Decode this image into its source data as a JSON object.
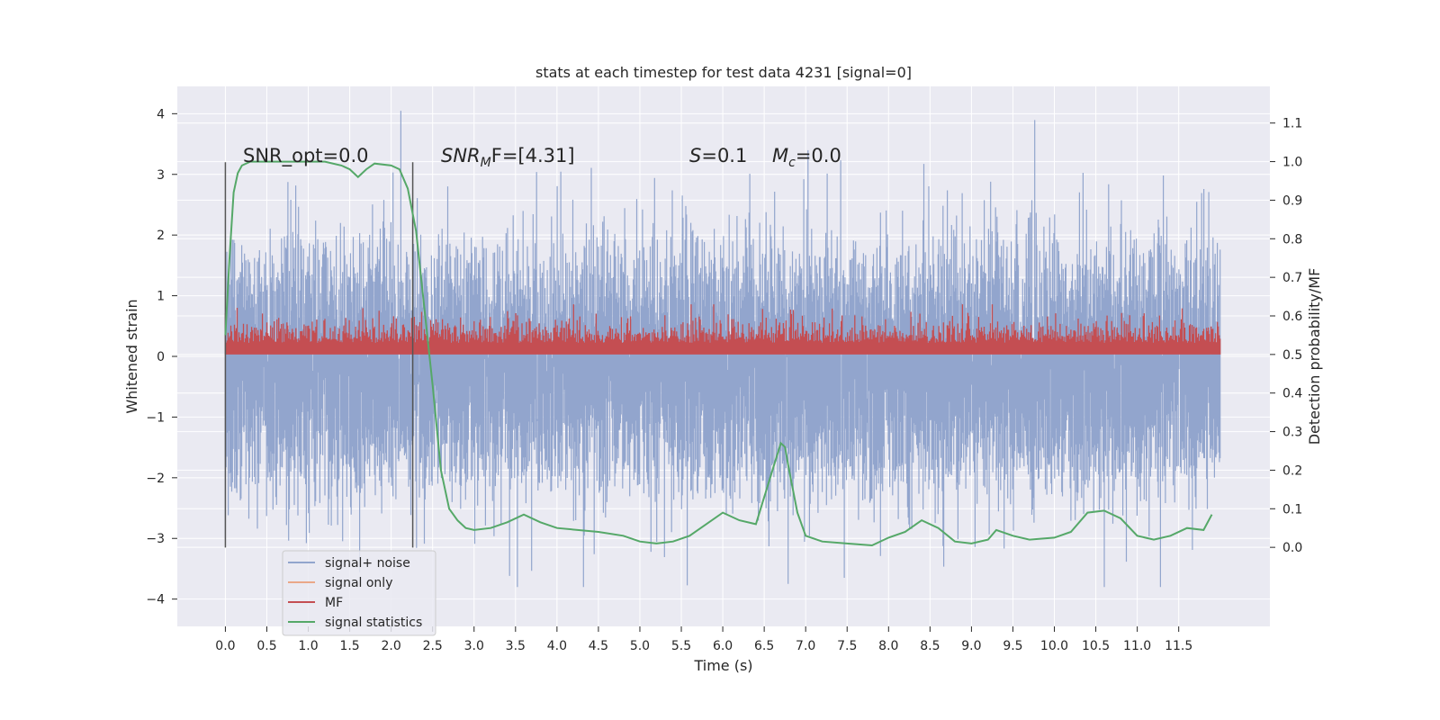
{
  "chart_data": {
    "type": "line",
    "title": "stats at each timestep for test data 4231 [signal=0]",
    "xlabel": "Time (s)",
    "ylabel": "Whitened strain",
    "ylabel_right": "Detection probability/MF",
    "xlim": [
      -0.58,
      12.6
    ],
    "ylim": [
      -4.45,
      4.45
    ],
    "ylim_right": [
      -0.205,
      1.195
    ],
    "x_ticks": [
      "0.0",
      "0.5",
      "1.0",
      "1.5",
      "2.0",
      "2.5",
      "3.0",
      "3.5",
      "4.0",
      "4.5",
      "5.0",
      "5.5",
      "6.0",
      "6.5",
      "7.0",
      "7.5",
      "8.0",
      "8.5",
      "9.0",
      "9.5",
      "10.0",
      "10.5",
      "11.0",
      "11.5"
    ],
    "y_ticks": [
      "4",
      "3",
      "2",
      "1",
      "0",
      "−1",
      "−2",
      "−3",
      "−4"
    ],
    "y_right_ticks": [
      "1.1",
      "1.0",
      "0.9",
      "0.8",
      "0.7",
      "0.6",
      "0.5",
      "0.4",
      "0.3",
      "0.2",
      "0.1",
      "0.0"
    ],
    "grid": true,
    "legend_position": "lower-left",
    "annotations": {
      "snr_opt": "SNR_opt=0.0",
      "snr_mf_var": "SNR",
      "snr_mf_sub": "M",
      "snr_mf_rest": "F=[4.31]",
      "s_var": "S",
      "s_rest": "=0.1",
      "mc_var": "M",
      "mc_sub": "c",
      "mc_rest": "=0.0"
    },
    "vlines_x": [
      0.0,
      2.26
    ],
    "series": [
      {
        "name": "signal+ noise",
        "color": "#92a5cd",
        "axis": "left",
        "kind": "noise",
        "x_range": [
          0.0,
          12.0
        ],
        "center": -0.3,
        "typical_range": [
          -2.0,
          2.3
        ],
        "extreme_range": [
          -3.8,
          4.1
        ]
      },
      {
        "name": "signal only",
        "color": "#eaa888",
        "axis": "left",
        "kind": "flat",
        "values": []
      },
      {
        "name": "MF",
        "color": "#c44e52",
        "axis": "right",
        "kind": "noise",
        "x_range": [
          0.0,
          12.0
        ],
        "center": 0.53,
        "typical_range": [
          0.5,
          0.6
        ],
        "extreme_range": [
          0.5,
          0.63
        ]
      },
      {
        "name": "signal statistics",
        "color": "#55a868",
        "axis": "right",
        "kind": "line",
        "x": [
          0.0,
          0.05,
          0.1,
          0.15,
          0.2,
          0.3,
          0.5,
          0.8,
          1.0,
          1.2,
          1.4,
          1.5,
          1.6,
          1.7,
          1.8,
          2.0,
          2.1,
          2.2,
          2.3,
          2.4,
          2.5,
          2.6,
          2.7,
          2.8,
          2.9,
          3.0,
          3.2,
          3.4,
          3.6,
          3.8,
          4.0,
          4.5,
          4.8,
          5.0,
          5.2,
          5.4,
          5.6,
          5.8,
          6.0,
          6.2,
          6.4,
          6.5,
          6.6,
          6.7,
          6.75,
          6.8,
          6.9,
          7.0,
          7.2,
          7.5,
          7.8,
          8.0,
          8.2,
          8.4,
          8.6,
          8.8,
          9.0,
          9.2,
          9.3,
          9.5,
          9.7,
          10.0,
          10.2,
          10.4,
          10.6,
          10.8,
          11.0,
          11.2,
          11.4,
          11.6,
          11.8,
          11.9
        ],
        "y": [
          0.55,
          0.75,
          0.92,
          0.97,
          0.99,
          1.0,
          1.0,
          1.0,
          1.0,
          1.0,
          0.99,
          0.98,
          0.96,
          0.98,
          0.995,
          0.99,
          0.98,
          0.93,
          0.82,
          0.62,
          0.42,
          0.2,
          0.1,
          0.07,
          0.05,
          0.045,
          0.05,
          0.065,
          0.085,
          0.065,
          0.05,
          0.04,
          0.03,
          0.015,
          0.01,
          0.015,
          0.03,
          0.06,
          0.09,
          0.07,
          0.06,
          0.13,
          0.2,
          0.27,
          0.26,
          0.2,
          0.09,
          0.03,
          0.015,
          0.01,
          0.005,
          0.025,
          0.04,
          0.07,
          0.05,
          0.015,
          0.01,
          0.02,
          0.045,
          0.03,
          0.02,
          0.025,
          0.04,
          0.09,
          0.095,
          0.075,
          0.03,
          0.02,
          0.03,
          0.05,
          0.045,
          0.085
        ]
      }
    ]
  }
}
